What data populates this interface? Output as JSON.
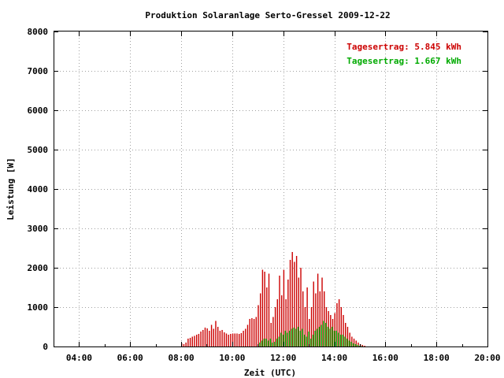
{
  "chart_data": {
    "type": "bar",
    "title": "Produktion Solaranlage Serto-Gressel 2009-12-22",
    "xlabel": "Zeit (UTC)",
    "ylabel": "Leistung [W]",
    "xlim": [
      "03:00",
      "20:00"
    ],
    "ylim": [
      0,
      8000
    ],
    "x_ticks": [
      "04:00",
      "06:00",
      "08:00",
      "10:00",
      "12:00",
      "14:00",
      "16:00",
      "18:00",
      "20:00"
    ],
    "y_ticks": [
      0,
      1000,
      2000,
      3000,
      4000,
      5000,
      6000,
      7000,
      8000
    ],
    "grid": true,
    "legend_position": "top-right",
    "series": [
      {
        "legend": "Tagesertrag: 5.845 kWh",
        "color": "#cc0000",
        "x": [
          "08:00",
          "08:05",
          "08:10",
          "08:15",
          "08:20",
          "08:25",
          "08:30",
          "08:35",
          "08:40",
          "08:45",
          "08:50",
          "08:55",
          "09:00",
          "09:05",
          "09:10",
          "09:15",
          "09:20",
          "09:25",
          "09:30",
          "09:35",
          "09:40",
          "09:45",
          "09:50",
          "09:55",
          "10:00",
          "10:05",
          "10:10",
          "10:15",
          "10:20",
          "10:25",
          "10:30",
          "10:35",
          "10:40",
          "10:45",
          "10:50",
          "10:55",
          "11:00",
          "11:05",
          "11:10",
          "11:15",
          "11:20",
          "11:25",
          "11:30",
          "11:35",
          "11:40",
          "11:45",
          "11:50",
          "11:55",
          "12:00",
          "12:05",
          "12:10",
          "12:15",
          "12:20",
          "12:25",
          "12:30",
          "12:35",
          "12:40",
          "12:45",
          "12:50",
          "12:55",
          "13:00",
          "13:05",
          "13:10",
          "13:15",
          "13:20",
          "13:25",
          "13:30",
          "13:35",
          "13:40",
          "13:45",
          "13:50",
          "13:55",
          "14:00",
          "14:05",
          "14:10",
          "14:15",
          "14:20",
          "14:25",
          "14:30",
          "14:35",
          "14:40",
          "14:45",
          "14:50",
          "14:55",
          "15:00",
          "15:05",
          "15:10"
        ],
        "values": [
          80,
          60,
          100,
          200,
          220,
          250,
          270,
          300,
          320,
          380,
          420,
          480,
          460,
          400,
          550,
          450,
          650,
          500,
          400,
          420,
          360,
          330,
          300,
          320,
          330,
          330,
          330,
          320,
          340,
          400,
          450,
          550,
          700,
          720,
          700,
          750,
          1050,
          1350,
          1950,
          1900,
          1500,
          1850,
          600,
          750,
          1000,
          1200,
          1800,
          1300,
          1950,
          1200,
          1700,
          2200,
          2400,
          2150,
          2300,
          1750,
          2000,
          1400,
          1000,
          1500,
          700,
          1000,
          1650,
          1350,
          1850,
          1400,
          1750,
          1400,
          1000,
          900,
          800,
          700,
          850,
          1100,
          1200,
          1000,
          800,
          600,
          500,
          350,
          250,
          200,
          150,
          100,
          60,
          40,
          20
        ]
      },
      {
        "legend": "Tagesertrag: 1.667 kWh",
        "color": "#00aa00",
        "x": [
          "08:00",
          "08:05",
          "08:10",
          "08:15",
          "08:20",
          "08:25",
          "08:30",
          "08:35",
          "08:40",
          "08:45",
          "08:50",
          "08:55",
          "09:00",
          "09:05",
          "09:10",
          "09:15",
          "09:20",
          "09:25",
          "09:30",
          "09:35",
          "09:40",
          "09:45",
          "09:50",
          "09:55",
          "10:00",
          "10:05",
          "10:10",
          "10:15",
          "10:20",
          "10:25",
          "10:30",
          "10:35",
          "10:40",
          "10:45",
          "10:50",
          "10:55",
          "11:00",
          "11:05",
          "11:10",
          "11:15",
          "11:20",
          "11:25",
          "11:30",
          "11:35",
          "11:40",
          "11:45",
          "11:50",
          "11:55",
          "12:00",
          "12:05",
          "12:10",
          "12:15",
          "12:20",
          "12:25",
          "12:30",
          "12:35",
          "12:40",
          "12:45",
          "12:50",
          "12:55",
          "13:00",
          "13:05",
          "13:10",
          "13:15",
          "13:20",
          "13:25",
          "13:30",
          "13:35",
          "13:40",
          "13:45",
          "13:50",
          "13:55",
          "14:00",
          "14:05",
          "14:10",
          "14:15",
          "14:20",
          "14:25",
          "14:30",
          "14:35",
          "14:40",
          "14:45",
          "14:50",
          "14:55",
          "15:00",
          "15:05",
          "15:10"
        ],
        "values": [
          0,
          0,
          0,
          0,
          0,
          0,
          0,
          0,
          0,
          0,
          0,
          0,
          0,
          0,
          0,
          0,
          0,
          0,
          0,
          0,
          0,
          0,
          0,
          0,
          0,
          0,
          0,
          0,
          0,
          0,
          0,
          0,
          0,
          0,
          0,
          0,
          100,
          150,
          200,
          200,
          150,
          200,
          100,
          120,
          200,
          250,
          350,
          300,
          400,
          350,
          400,
          450,
          480,
          450,
          500,
          400,
          450,
          300,
          250,
          380,
          200,
          300,
          400,
          450,
          500,
          550,
          650,
          600,
          500,
          450,
          500,
          400,
          400,
          350,
          300,
          300,
          250,
          200,
          150,
          120,
          80,
          60,
          40,
          20,
          10,
          0,
          0
        ]
      }
    ]
  }
}
